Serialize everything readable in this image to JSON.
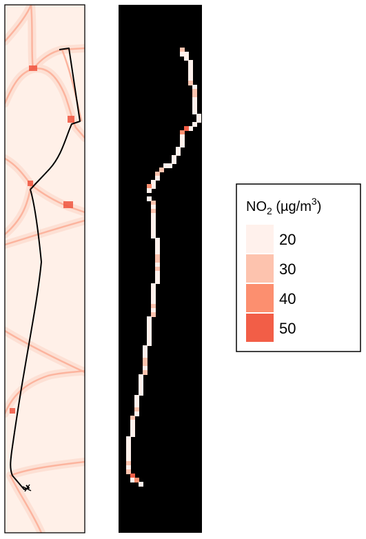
{
  "legend": {
    "title_main": "NO",
    "title_sub": "2",
    "title_unit_open": " (µg/m",
    "title_unit_sup": "3",
    "title_unit_close": ")",
    "items": [
      {
        "label": "20",
        "value": 20,
        "color": "#fff1ec"
      },
      {
        "label": "30",
        "value": 30,
        "color": "#fdc3ae"
      },
      {
        "label": "40",
        "value": 40,
        "color": "#fc8f6f"
      },
      {
        "label": "50",
        "value": 50,
        "color": "#f25e47"
      }
    ]
  },
  "colors": {
    "map_background": "#fff0e8",
    "road_light": "#fcb49e",
    "road_dark": "#f0553f",
    "exposure_background": "#000000",
    "route_line": "#000000"
  }
}
